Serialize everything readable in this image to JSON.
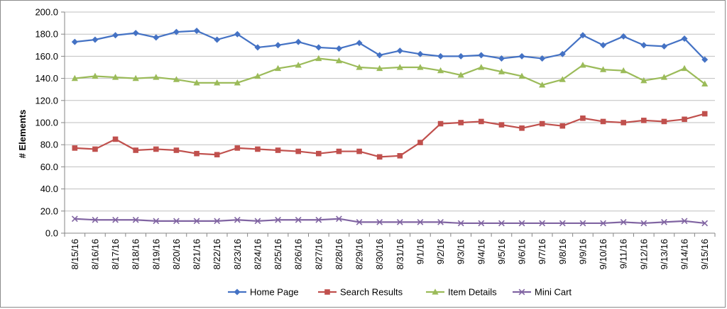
{
  "chart_data": {
    "type": "line",
    "title": "",
    "xlabel": "",
    "ylabel": "# Elements",
    "ylim": [
      0,
      200
    ],
    "ytick_step": 20,
    "ytick_labels": [
      "0.0",
      "20.0",
      "40.0",
      "60.0",
      "80.0",
      "100.0",
      "120.0",
      "140.0",
      "160.0",
      "180.0",
      "200.0"
    ],
    "grid": "horizontal",
    "legend_position": "bottom",
    "categories": [
      "8/15/16",
      "8/16/16",
      "8/17/16",
      "8/18/16",
      "8/19/16",
      "8/20/16",
      "8/21/16",
      "8/22/16",
      "8/23/16",
      "8/24/16",
      "8/25/16",
      "8/26/16",
      "8/27/16",
      "8/28/16",
      "8/29/16",
      "8/30/16",
      "8/31/16",
      "9/1/16",
      "9/2/16",
      "9/3/16",
      "9/4/16",
      "9/5/16",
      "9/6/16",
      "9/7/16",
      "9/8/16",
      "9/9/16",
      "9/10/16",
      "9/11/16",
      "9/12/16",
      "9/13/16",
      "9/14/16",
      "9/15/16"
    ],
    "series": [
      {
        "name": "Home Page",
        "color": "#4472c4",
        "marker": "diamond",
        "values": [
          173,
          175,
          179,
          181,
          177,
          182,
          183,
          175,
          180,
          168,
          170,
          173,
          168,
          167,
          172,
          161,
          165,
          162,
          160,
          160,
          161,
          158,
          160,
          158,
          162,
          179,
          170,
          178,
          170,
          169,
          176,
          157
        ]
      },
      {
        "name": "Search Results",
        "color": "#c0504d",
        "marker": "square",
        "values": [
          77,
          76,
          85,
          75,
          76,
          75,
          72,
          71,
          77,
          76,
          75,
          74,
          72,
          74,
          74,
          69,
          70,
          82,
          99,
          100,
          101,
          98,
          95,
          99,
          97,
          104,
          101,
          100,
          102,
          101,
          103,
          108
        ]
      },
      {
        "name": "Item Details",
        "color": "#9bbb59",
        "marker": "triangle",
        "values": [
          140,
          142,
          141,
          140,
          141,
          139,
          136,
          136,
          136,
          142,
          149,
          152,
          158,
          156,
          150,
          149,
          150,
          150,
          147,
          143,
          150,
          146,
          142,
          134,
          139,
          152,
          148,
          147,
          138,
          141,
          149,
          135
        ]
      },
      {
        "name": "Mini Cart",
        "color": "#8064a2",
        "marker": "x",
        "values": [
          13,
          12,
          12,
          12,
          11,
          11,
          11,
          11,
          12,
          11,
          12,
          12,
          12,
          13,
          10,
          10,
          10,
          10,
          10,
          9,
          9,
          9,
          9,
          9,
          9,
          9,
          9,
          10,
          9,
          10,
          11,
          9
        ]
      }
    ]
  }
}
